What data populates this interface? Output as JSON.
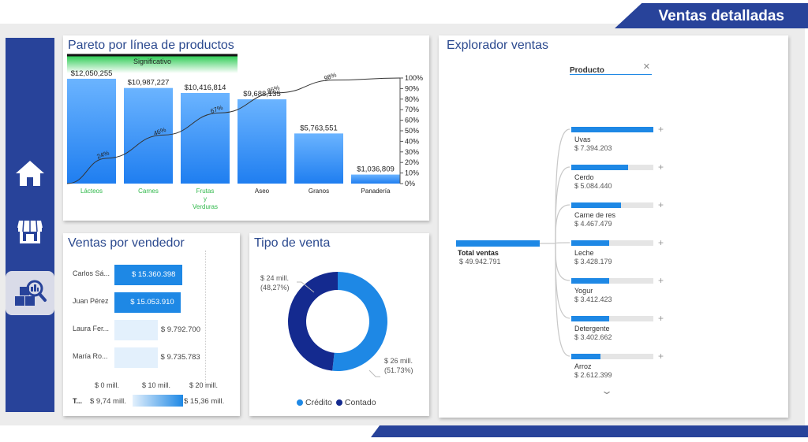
{
  "header": {
    "title": "Ventas detalladas"
  },
  "nav": [
    {
      "icon": "home-icon"
    },
    {
      "icon": "store-icon"
    },
    {
      "icon": "inventory-search-icon"
    }
  ],
  "pareto": {
    "title": "Pareto por línea de productos",
    "band_label": "Significativo",
    "chart_data": {
      "type": "bar",
      "categories": [
        "Lácteos",
        "Carnes",
        "Frutas y Verduras",
        "Aseo",
        "Granos",
        "Panadería"
      ],
      "category_lines": [
        [
          "Lácteos"
        ],
        [
          "Carnes"
        ],
        [
          "Frutas",
          "y",
          "Verduras"
        ],
        [
          "Aseo"
        ],
        [
          "Granos"
        ],
        [
          "Panadería"
        ]
      ],
      "values": [
        12050255,
        10987227,
        10416814,
        9688135,
        5763551,
        1036809
      ],
      "value_labels": [
        "$12,050,255",
        "$10,987,227",
        "$10,416,814",
        "$9,688,135",
        "$5,763,551",
        "$1,036,809"
      ],
      "cumulative_pct_labels": [
        "24%",
        "46%",
        "67%",
        "86%",
        "98%"
      ],
      "cumulative_pct": [
        24,
        46,
        67,
        86,
        98,
        100
      ],
      "y2_ticks": [
        "100%",
        "90%",
        "80%",
        "70%",
        "60%",
        "50%",
        "40%",
        "30%",
        "20%",
        "10%",
        "0%"
      ],
      "ylim": [
        0,
        12500000
      ],
      "significant_categories": [
        "Lácteos",
        "Carnes",
        "Frutas y Verduras"
      ],
      "colors": {
        "bar_top": "#5aa8ff",
        "bar_bottom": "#1e7df0",
        "significant_label": "#2fb84a",
        "band": "#3ccf5a"
      }
    }
  },
  "vendedor": {
    "title": "Ventas por vendedor",
    "rows": [
      {
        "name": "Carlos Sá...",
        "value": "$ 15.360.398",
        "amount": 15.36
      },
      {
        "name": "Juan Pérez",
        "value": "$ 15.053.910",
        "amount": 15.05
      },
      {
        "name": "Laura Fer...",
        "value": "$ 9.792.700",
        "amount": 9.79
      },
      {
        "name": "María Ro...",
        "value": "$ 9.735.783",
        "amount": 9.74
      }
    ],
    "axis": [
      "$ 0 mill.",
      "$ 10 mill.",
      "$ 20 mill."
    ],
    "legend": {
      "label": "T...",
      "min": "$ 9,74 mill.",
      "max": "$ 15,36 mill."
    }
  },
  "tipo": {
    "title": "Tipo de venta",
    "chart_data": {
      "type": "pie",
      "categories": [
        "Crédito",
        "Contado"
      ],
      "values": [
        51.73,
        48.27
      ],
      "colors": [
        "#1e88e5",
        "#142a8f"
      ]
    },
    "label_contado": {
      "amount": "$ 24 mill.",
      "pct": "(48,27%)"
    },
    "label_credito": {
      "amount": "$ 26 mill.",
      "pct": "(51.73%)"
    },
    "legend": [
      "Crédito",
      "Contado"
    ]
  },
  "explorer": {
    "title": "Explorador ventas",
    "field": "Producto",
    "root": {
      "label": "Total ventas",
      "value": "$ 49.942.791"
    },
    "nodes": [
      {
        "label": "Uvas",
        "value": "$ 7.394.203",
        "amount": 7394203
      },
      {
        "label": "Cerdo",
        "value": "$ 5.084.440",
        "amount": 5084440
      },
      {
        "label": "Carne de res",
        "value": "$ 4.467.479",
        "amount": 4467479
      },
      {
        "label": "Leche",
        "value": "$ 3.428.179",
        "amount": 3428179
      },
      {
        "label": "Yogur",
        "value": "$ 3.412.423",
        "amount": 3412423
      },
      {
        "label": "Detergente",
        "value": "$ 3.402.662",
        "amount": 3402662
      },
      {
        "label": "Arroz",
        "value": "$ 2.612.399",
        "amount": 2612399
      }
    ]
  }
}
